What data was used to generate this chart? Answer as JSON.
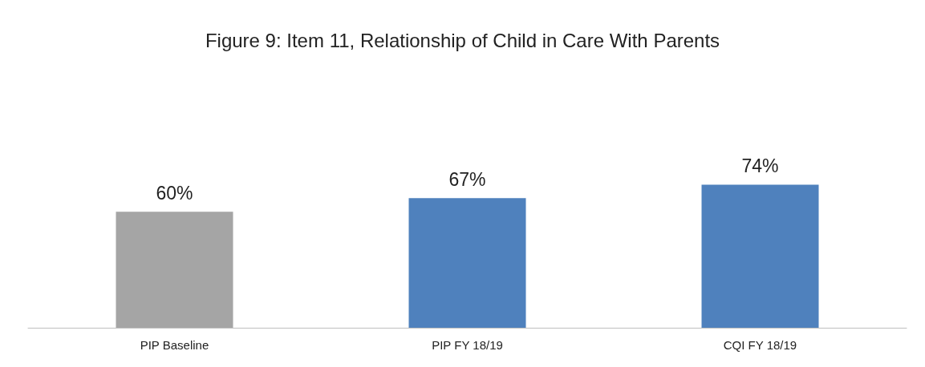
{
  "chart_data": {
    "type": "bar",
    "title": "Figure 9: Item 11, Relationship of Child in Care With Parents",
    "categories": [
      "PIP Baseline",
      "PIP FY 18/19",
      "CQI FY 18/19"
    ],
    "values": [
      60,
      67,
      74
    ],
    "colors": [
      "#a5a5a5",
      "#4f81bd",
      "#4f81bd"
    ],
    "value_labels": [
      "60%",
      "67%",
      "74%"
    ],
    "grid": false
  }
}
